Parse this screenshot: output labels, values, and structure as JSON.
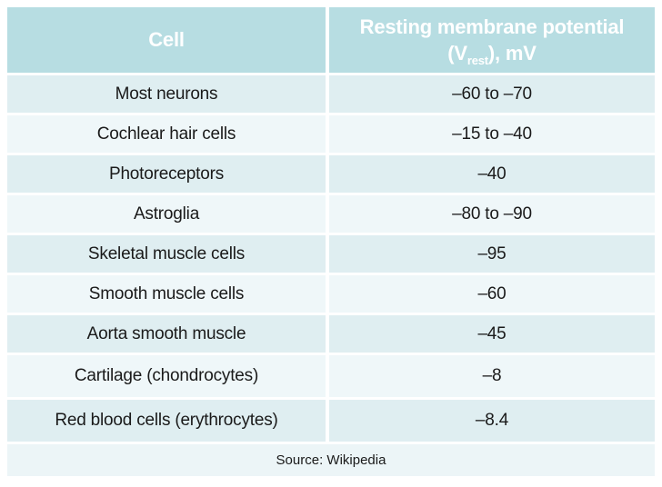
{
  "chart_data": {
    "type": "table",
    "columns": [
      "Cell",
      "Resting membrane potential (Vrest), mV"
    ],
    "header_col2_parts": {
      "line1": "Resting membrane potential",
      "pre": "(V",
      "sub": "rest",
      "post": "), mV"
    },
    "rows": [
      [
        "Most neurons",
        "–60 to –70"
      ],
      [
        "Cochlear hair cells",
        "–15 to –40"
      ],
      [
        "Photoreceptors",
        "–40"
      ],
      [
        "Astroglia",
        "–80 to –90"
      ],
      [
        "Skeletal muscle cells",
        "–95"
      ],
      [
        "Smooth muscle cells",
        "–60"
      ],
      [
        "Aorta smooth muscle",
        "–45"
      ],
      [
        "Cartilage (chondrocytes)",
        "–8"
      ],
      [
        "Red blood cells (erythrocytes)",
        "–8.4"
      ]
    ],
    "footer": "Source: Wikipedia"
  },
  "colors": {
    "header_bg": "#b7dde2",
    "header_text": "#ffffff",
    "row_odd_bg": "#dfeef1",
    "row_even_bg": "#eff7f9",
    "footer_bg": "#ecf5f7",
    "body_text": "#1a1a1a"
  }
}
